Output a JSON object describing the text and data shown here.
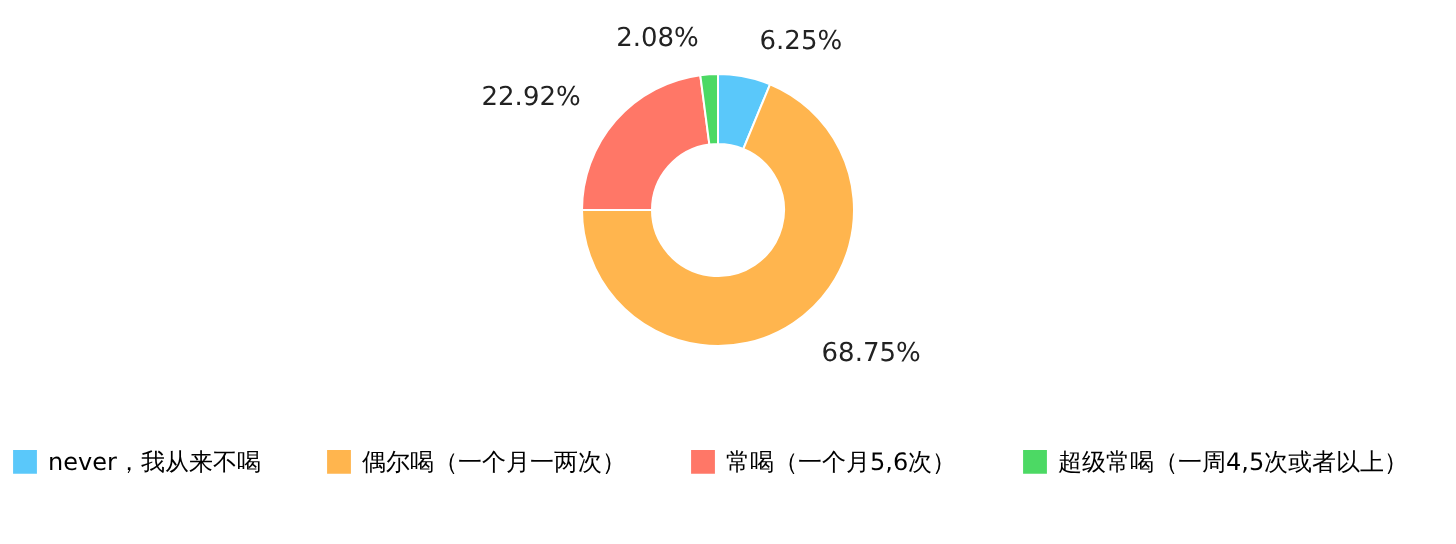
{
  "chart_data": {
    "type": "donut",
    "categories": [
      "never，我从来不喝",
      "偶尔喝（一个月一两次）",
      "常喝（一个月5,6次）",
      "超级常喝（一周4,5次或者以上）"
    ],
    "values": [
      6.25,
      68.75,
      22.92,
      2.08
    ],
    "colors": [
      "#5ac8fa",
      "#ffb54e",
      "#ff7767",
      "#4cd964"
    ],
    "value_labels": [
      "6.25%",
      "68.75%",
      "22.92%",
      "2.08%"
    ],
    "legend": "bottom"
  }
}
